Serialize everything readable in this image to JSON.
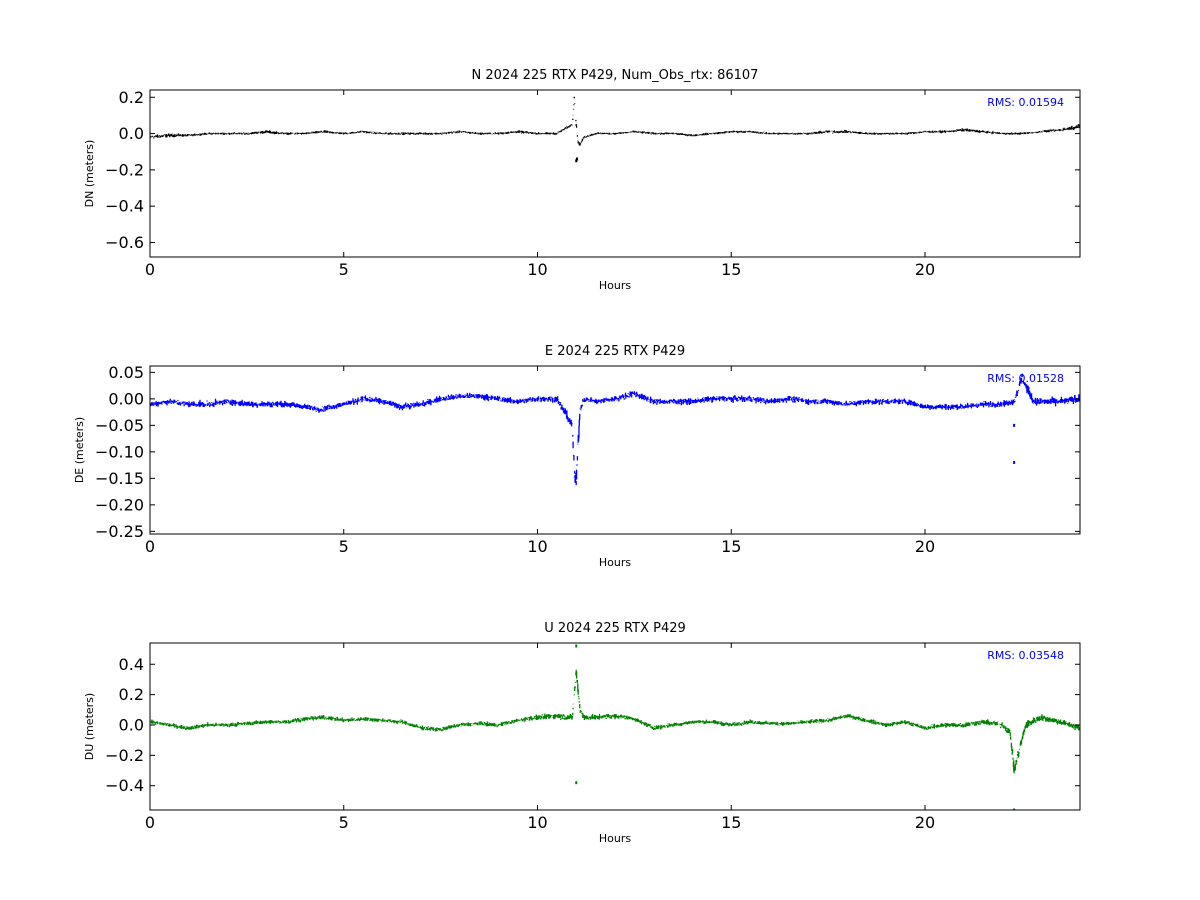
{
  "chart_data": [
    {
      "type": "scatter",
      "title": "N 2024 225 RTX  P429, Num_Obs_rtx: 86107",
      "xlabel": "Hours",
      "ylabel": "DN (meters)",
      "xlim": [
        0,
        24
      ],
      "ylim": [
        -0.68,
        0.24
      ],
      "xticks": [
        0,
        5,
        10,
        15,
        20
      ],
      "yticks": [
        0.2,
        0.0,
        -0.2,
        -0.4,
        -0.6
      ],
      "ytick_labels": [
        "0.2",
        "0.0",
        "−0.2",
        "−0.4",
        "−0.6"
      ],
      "xtick_labels": [
        "0",
        "5",
        "10",
        "15",
        "20"
      ],
      "grid": false,
      "color": "#000000",
      "annotation": "RMS:  0.01594",
      "annotation_color": "#0000ff",
      "series": [
        {
          "x": [
            0,
            0.5,
            1,
            1.5,
            2,
            2.5,
            3,
            3.5,
            4,
            4.5,
            5,
            5.5,
            6,
            6.5,
            7,
            7.5,
            8,
            8.5,
            9,
            9.5,
            10,
            10.5,
            10.9,
            10.95,
            11.0,
            11.05,
            11.1,
            11.2,
            11.5,
            12,
            12.5,
            13,
            13.5,
            14,
            14.5,
            15,
            15.5,
            16,
            16.5,
            17,
            17.5,
            18,
            18.5,
            19,
            19.5,
            20,
            20.5,
            21,
            21.5,
            22,
            22.5,
            23,
            23.5,
            24
          ],
          "y": [
            -0.02,
            -0.01,
            -0.01,
            0.0,
            0.0,
            0.0,
            0.01,
            0.0,
            0.0,
            0.01,
            0.0,
            0.01,
            0.0,
            0.0,
            0.0,
            0.0,
            0.01,
            0.0,
            0.0,
            0.01,
            0.0,
            0.0,
            0.05,
            0.2,
            0.05,
            -0.05,
            -0.06,
            -0.02,
            0.0,
            0.0,
            0.01,
            0.0,
            0.0,
            -0.01,
            0.0,
            0.01,
            0.01,
            0.0,
            0.0,
            0.0,
            0.01,
            0.01,
            0.0,
            0.0,
            0.0,
            0.01,
            0.01,
            0.02,
            0.01,
            0.0,
            0.0,
            0.01,
            0.02,
            0.04
          ],
          "noise": [
            0.015,
            0.015,
            0.009,
            0.009,
            0.009,
            0.009,
            0.013,
            0.009,
            0.009,
            0.011,
            0.009,
            0.009,
            0.009,
            0.009,
            0.009,
            0.009,
            0.009,
            0.009,
            0.009,
            0.011,
            0.009,
            0.009,
            0.01,
            0.02,
            0.02,
            0.015,
            0.01,
            0.009,
            0.009,
            0.009,
            0.009,
            0.009,
            0.009,
            0.009,
            0.009,
            0.009,
            0.009,
            0.009,
            0.009,
            0.009,
            0.013,
            0.011,
            0.009,
            0.009,
            0.009,
            0.009,
            0.009,
            0.013,
            0.011,
            0.009,
            0.009,
            0.009,
            0.011,
            0.02
          ]
        }
      ],
      "outliers": [
        [
          11.0,
          -0.15
        ],
        [
          11.02,
          -0.14
        ]
      ]
    },
    {
      "type": "scatter",
      "title": "E 2024 225 RTX  P429",
      "xlabel": "Hours",
      "ylabel": "DE (meters)",
      "xlim": [
        0,
        24
      ],
      "ylim": [
        -0.255,
        0.062
      ],
      "xticks": [
        0,
        5,
        10,
        15,
        20
      ],
      "yticks": [
        0.05,
        0.0,
        -0.05,
        -0.1,
        -0.15,
        -0.2,
        -0.25
      ],
      "ytick_labels": [
        "0.05",
        "0.00",
        "−0.05",
        "−0.10",
        "−0.15",
        "−0.20",
        "−0.25"
      ],
      "xtick_labels": [
        "0",
        "5",
        "10",
        "15",
        "20"
      ],
      "grid": false,
      "color": "#0000ff",
      "annotation": "RMS:  0.01528",
      "annotation_color": "#0000ff",
      "series": [
        {
          "x": [
            0,
            0.5,
            1,
            1.5,
            2,
            2.5,
            3,
            3.5,
            4,
            4.4,
            5,
            5.5,
            6,
            6.5,
            7,
            7.5,
            8,
            8.5,
            9,
            9.5,
            10,
            10.5,
            10.9,
            10.95,
            11.0,
            11.05,
            11.1,
            11.2,
            11.5,
            12,
            12.5,
            13,
            13.5,
            14,
            14.5,
            15,
            15.5,
            16,
            16.5,
            17,
            17.5,
            18,
            18.5,
            19,
            19.5,
            20,
            20.5,
            21,
            21.5,
            22,
            22.3,
            22.5,
            22.8,
            23.5,
            24
          ],
          "y": [
            -0.01,
            -0.005,
            -0.01,
            -0.01,
            -0.005,
            -0.01,
            -0.01,
            -0.01,
            -0.015,
            -0.02,
            -0.01,
            0.0,
            -0.005,
            -0.015,
            -0.01,
            0.0,
            0.005,
            0.005,
            0.0,
            -0.005,
            0.0,
            0.0,
            -0.05,
            -0.14,
            -0.16,
            -0.08,
            -0.02,
            0.0,
            -0.005,
            0.0,
            0.01,
            -0.005,
            -0.005,
            -0.005,
            0.0,
            0.0,
            0.0,
            -0.005,
            0.0,
            -0.005,
            -0.005,
            -0.01,
            -0.005,
            -0.005,
            -0.005,
            -0.015,
            -0.015,
            -0.015,
            -0.01,
            -0.01,
            -0.005,
            0.04,
            -0.005,
            -0.005,
            0.0
          ],
          "noise": [
            0.008,
            0.008,
            0.008,
            0.009,
            0.008,
            0.009,
            0.008,
            0.008,
            0.008,
            0.008,
            0.008,
            0.009,
            0.008,
            0.009,
            0.008,
            0.008,
            0.008,
            0.008,
            0.008,
            0.008,
            0.008,
            0.009,
            0.015,
            0.025,
            0.02,
            0.03,
            0.01,
            0.008,
            0.008,
            0.008,
            0.009,
            0.008,
            0.008,
            0.008,
            0.008,
            0.008,
            0.008,
            0.008,
            0.008,
            0.008,
            0.008,
            0.008,
            0.008,
            0.008,
            0.008,
            0.008,
            0.008,
            0.008,
            0.008,
            0.008,
            0.008,
            0.015,
            0.01,
            0.01,
            0.012
          ]
        }
      ],
      "outliers": [
        [
          22.3,
          -0.12
        ],
        [
          22.3,
          -0.05
        ]
      ]
    },
    {
      "type": "scatter",
      "title": "U 2024 225 RTX  P429",
      "xlabel": "Hours",
      "ylabel": "DU (meters)",
      "xlim": [
        0,
        24
      ],
      "ylim": [
        -0.56,
        0.54
      ],
      "xticks": [
        0,
        5,
        10,
        15,
        20
      ],
      "yticks": [
        0.4,
        0.2,
        0.0,
        -0.2,
        -0.4
      ],
      "ytick_labels": [
        "0.4",
        "0.2",
        "0.0",
        "−0.2",
        "−0.4"
      ],
      "xtick_labels": [
        "0",
        "5",
        "10",
        "15",
        "20"
      ],
      "grid": false,
      "color": "#008000",
      "annotation": "RMS:  0.03548",
      "annotation_color": "#0000ff",
      "series": [
        {
          "x": [
            0,
            0.5,
            1,
            1.5,
            2,
            2.5,
            3,
            3.5,
            4,
            4.5,
            5,
            5.5,
            6,
            6.5,
            7,
            7.5,
            8,
            8.5,
            9,
            9.5,
            10,
            10.5,
            10.9,
            11.0,
            11.05,
            11.1,
            11.2,
            11.5,
            12,
            12.5,
            13,
            13.5,
            14,
            14.5,
            15,
            15.5,
            16,
            16.5,
            17,
            17.5,
            18,
            18.5,
            19,
            19.5,
            20,
            20.5,
            21,
            21.5,
            22,
            22.2,
            22.3,
            22.4,
            22.6,
            23,
            23.5,
            24
          ],
          "y": [
            0.02,
            0.0,
            -0.02,
            0.0,
            0.0,
            0.01,
            0.02,
            0.02,
            0.04,
            0.05,
            0.03,
            0.04,
            0.03,
            0.02,
            -0.02,
            -0.03,
            0.0,
            0.01,
            0.0,
            0.03,
            0.05,
            0.06,
            0.05,
            0.35,
            0.22,
            0.1,
            0.05,
            0.05,
            0.06,
            0.04,
            -0.02,
            0.0,
            0.02,
            0.02,
            0.0,
            0.02,
            0.01,
            0.01,
            0.02,
            0.03,
            0.06,
            0.03,
            0.0,
            0.02,
            -0.02,
            0.0,
            0.0,
            0.02,
            0.0,
            -0.05,
            -0.3,
            -0.2,
            0.0,
            0.05,
            0.02,
            -0.02
          ],
          "noise": [
            0.02,
            0.02,
            0.02,
            0.02,
            0.02,
            0.02,
            0.02,
            0.02,
            0.02,
            0.02,
            0.02,
            0.02,
            0.02,
            0.02,
            0.02,
            0.02,
            0.02,
            0.02,
            0.02,
            0.02,
            0.025,
            0.03,
            0.03,
            0.05,
            0.05,
            0.04,
            0.03,
            0.025,
            0.025,
            0.02,
            0.02,
            0.02,
            0.02,
            0.02,
            0.02,
            0.02,
            0.02,
            0.02,
            0.02,
            0.02,
            0.02,
            0.02,
            0.02,
            0.02,
            0.02,
            0.025,
            0.025,
            0.025,
            0.03,
            0.04,
            0.05,
            0.05,
            0.04,
            0.03,
            0.03,
            0.03
          ]
        }
      ],
      "outliers": [
        [
          11.0,
          0.52
        ],
        [
          11.0,
          -0.38
        ],
        [
          22.3,
          -0.56
        ]
      ]
    }
  ]
}
